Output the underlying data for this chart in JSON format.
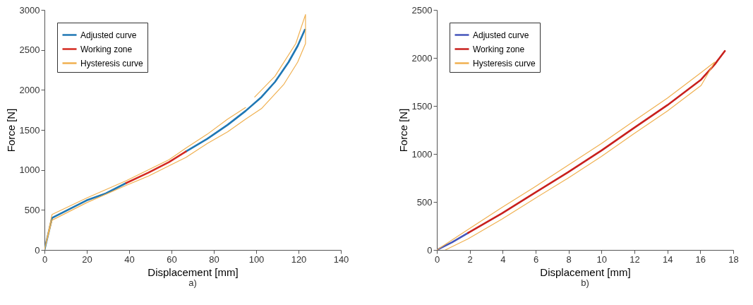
{
  "chart_data": [
    {
      "type": "line",
      "title": "a)",
      "xlabel": "Displacement [mm]",
      "ylabel": "Force [N]",
      "xlim": [
        0,
        140
      ],
      "ylim": [
        0,
        3000
      ],
      "xticks": [
        0,
        20,
        40,
        60,
        80,
        100,
        120,
        140
      ],
      "yticks": [
        0,
        500,
        1000,
        1500,
        2000,
        2500,
        3000
      ],
      "grid": false,
      "legend": "top left",
      "marker": "none",
      "line_style": "solid",
      "series": [
        {
          "name": "Adjusted curve",
          "color": "#1f77b4",
          "x": [
            0,
            3.6,
            19.9,
            29,
            38.6,
            49.2,
            58.8,
            66.8,
            76.9,
            86.5,
            95,
            102.5,
            108.9,
            115.3,
            119.6,
            123
          ],
          "values": [
            0,
            401,
            619,
            706,
            836,
            null,
            null,
            1229,
            1388,
            1563,
            1737,
            1911,
            2100,
            2347,
            2550,
            2753
          ]
        },
        {
          "name": "Working zone",
          "color": "#d42a20",
          "x": [
            38.6,
            49.2,
            58.8,
            66.8
          ],
          "values": [
            836,
            967,
            1098,
            1229
          ]
        },
        {
          "name": "Hysteresis curve",
          "color": "#f0b050",
          "x": [
            0,
            3.6,
            19.9,
            38.6,
            58.8,
            66.8,
            76.9,
            86.5,
            95,
            97,
            99.3,
            108.9,
            118.7,
            123.3,
            123.3,
            119.6,
            113.1,
            102.5,
            95,
            86.5,
            76.9,
            66.8,
            49.2,
            38.6,
            19.9,
            3.6,
            0
          ],
          "values": [
            0,
            444,
            648,
            865,
            1127,
            1272,
            1446,
            1635,
            1780,
            null,
            1911,
            2172,
            2579,
            2942,
            2579,
            2347,
            2071,
            1766,
            1635,
            1475,
            1330,
            1156,
            924,
            807,
            590,
            372,
            0
          ]
        }
      ]
    },
    {
      "type": "line",
      "title": "b)",
      "xlabel": "Displacement [mm]",
      "ylabel": "Force [N]",
      "xlim": [
        0,
        18
      ],
      "ylim": [
        0,
        2500
      ],
      "xticks": [
        0,
        2,
        4,
        6,
        8,
        10,
        12,
        14,
        16,
        18
      ],
      "yticks": [
        0,
        500,
        1000,
        1500,
        2000,
        2500
      ],
      "grid": false,
      "legend": "top left",
      "marker": "none",
      "line_style": "solid",
      "series": [
        {
          "name": "Adjusted curve",
          "color": "#4455bb",
          "x": [
            0,
            0.93,
            1.9
          ],
          "values": [
            0,
            80,
            177
          ]
        },
        {
          "name": "Working zone",
          "color": "#c8201c",
          "x": [
            1.9,
            3.96,
            5.88,
            7.94,
            10,
            11.93,
            14,
            16.05,
            16.87,
            17.49
          ],
          "values": [
            177,
            382,
            588,
            806,
            1036,
            1266,
            1508,
            1774,
            1931,
            2072
          ]
        },
        {
          "name": "Hysteresis curve",
          "color": "#f0b050",
          "x": [
            0,
            1.9,
            3.96,
            5.88,
            7.94,
            10,
            11.93,
            14,
            16.05,
            16.87,
            16.05,
            14,
            11.93,
            10,
            7.94,
            5.88,
            3.96,
            1.9,
            0.52
          ],
          "values": [
            0,
            213,
            443,
            649,
            879,
            1109,
            1339,
            1581,
            1847,
            1956,
            1713,
            1447,
            1205,
            975,
            745,
            528,
            322,
            116,
            0
          ]
        }
      ]
    }
  ]
}
